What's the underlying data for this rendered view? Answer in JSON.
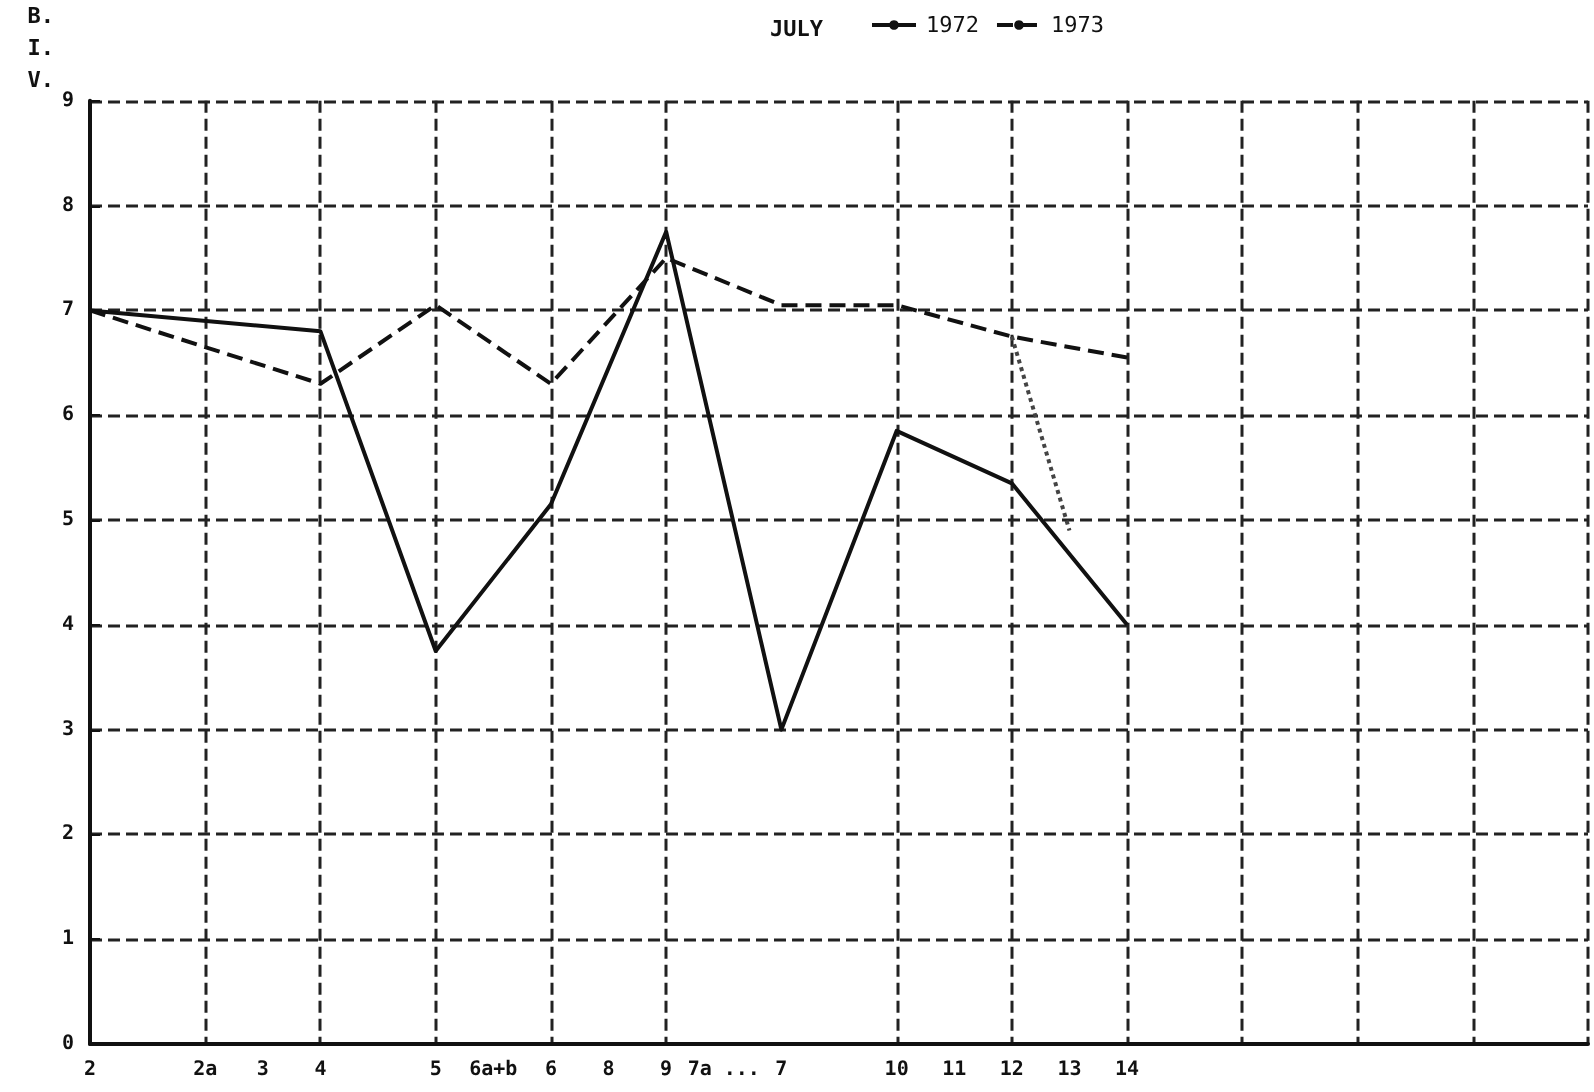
{
  "chart_data": {
    "type": "line",
    "title": "JULY",
    "ylabel": "B. I. V.",
    "categories": [
      "2",
      null,
      "2a",
      "3",
      "4",
      null,
      "5",
      "6a+b",
      "6",
      "8",
      "9",
      "7a ...",
      "7",
      null,
      "10",
      "11",
      "12",
      "13",
      "14",
      null,
      null,
      null,
      null,
      null,
      null,
      null,
      null
    ],
    "series": [
      {
        "name": "1972",
        "color": "#111111",
        "line_style": "solid",
        "values": [
          7.0,
          null,
          null,
          null,
          6.8,
          null,
          3.75,
          null,
          5.15,
          null,
          7.75,
          null,
          3.0,
          null,
          5.85,
          null,
          5.35,
          null,
          4.0,
          null,
          null,
          null,
          null,
          null,
          null,
          null,
          null
        ]
      },
      {
        "name": "1973",
        "color": "#111111",
        "line_style": "dashed",
        "values": [
          7.0,
          null,
          null,
          null,
          6.3,
          null,
          7.05,
          null,
          6.3,
          null,
          7.5,
          null,
          7.05,
          null,
          7.05,
          null,
          6.75,
          null,
          6.55,
          null,
          null,
          null,
          null,
          null,
          null,
          null,
          null
        ]
      },
      {
        "color": "#444444",
        "line_style": "dotted",
        "values": [
          null,
          null,
          null,
          null,
          null,
          null,
          null,
          null,
          null,
          null,
          null,
          null,
          null,
          null,
          null,
          null,
          6.75,
          4.9,
          null,
          null,
          null,
          null,
          null,
          null,
          null,
          null,
          null
        ]
      }
    ],
    "ylim": [
      0,
      9
    ],
    "yticks": [
      0,
      1,
      2,
      3,
      4,
      5,
      6,
      7,
      8,
      9
    ],
    "grid": true,
    "legend": "top",
    "marker": "none"
  }
}
